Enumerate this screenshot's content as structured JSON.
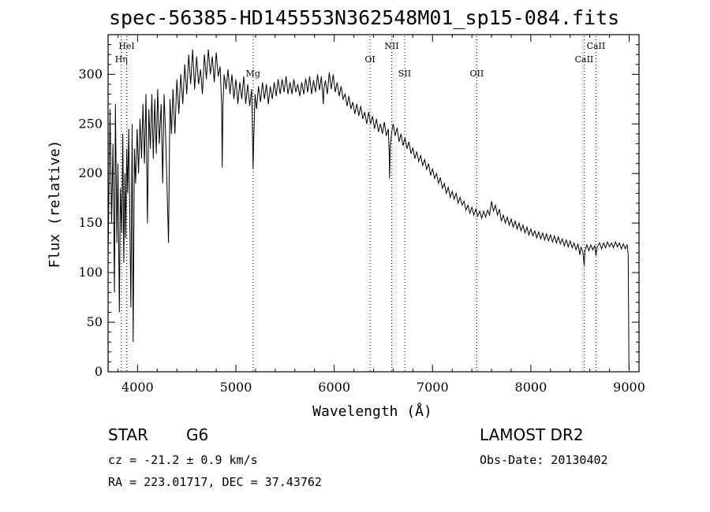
{
  "title": "spec-56385-HD145553N362548M01_sp15-084.fits",
  "footer": {
    "class_label": "STAR",
    "subclass": "G6",
    "survey": "LAMOST DR2",
    "cz": "cz = -21.2 ± 0.9 km/s",
    "obs_date": "Obs-Date: 20130402",
    "radec": "RA = 223.01717, DEC =  37.43762"
  },
  "chart_data": {
    "type": "line",
    "title": "spec-56385-HD145553N362548M01_sp15-084.fits",
    "xlabel": "Wavelength (Å)",
    "ylabel": "Flux (relative)",
    "xlim": [
      3700,
      9100
    ],
    "ylim": [
      0,
      340
    ],
    "xticks": [
      4000,
      5000,
      6000,
      7000,
      8000,
      9000
    ],
    "yticks": [
      0,
      50,
      100,
      150,
      200,
      250,
      300
    ],
    "grid": false,
    "line_color": "#000000",
    "marker_color": "#000000",
    "markers": [
      {
        "label": "Hη",
        "x": 3835,
        "row": 2
      },
      {
        "label": "HeI",
        "x": 3889,
        "row": 1
      },
      {
        "label": "Mg",
        "x": 5175,
        "row": 3
      },
      {
        "label": "OI",
        "x": 6364,
        "row": 2
      },
      {
        "label": "NII",
        "x": 6584,
        "row": 1
      },
      {
        "label": "SII",
        "x": 6717,
        "row": 3
      },
      {
        "label": "OII",
        "x": 7450,
        "row": 3
      },
      {
        "label": "CaII",
        "x": 8542,
        "row": 2
      },
      {
        "label": "CaII",
        "x": 8662,
        "row": 1
      }
    ],
    "spectrum": [
      [
        3700,
        115
      ],
      [
        3720,
        265
      ],
      [
        3735,
        150
      ],
      [
        3750,
        230
      ],
      [
        3765,
        80
      ],
      [
        3775,
        270
      ],
      [
        3790,
        130
      ],
      [
        3800,
        210
      ],
      [
        3815,
        60
      ],
      [
        3825,
        185
      ],
      [
        3840,
        140
      ],
      [
        3850,
        240
      ],
      [
        3860,
        110
      ],
      [
        3872,
        200
      ],
      [
        3880,
        135
      ],
      [
        3890,
        225
      ],
      [
        3900,
        180
      ],
      [
        3910,
        245
      ],
      [
        3920,
        165
      ],
      [
        3932,
        65
      ],
      [
        3945,
        250
      ],
      [
        3955,
        30
      ],
      [
        3968,
        225
      ],
      [
        3980,
        190
      ],
      [
        3995,
        245
      ],
      [
        4010,
        200
      ],
      [
        4025,
        255
      ],
      [
        4040,
        215
      ],
      [
        4055,
        270
      ],
      [
        4070,
        210
      ],
      [
        4085,
        280
      ],
      [
        4100,
        150
      ],
      [
        4115,
        265
      ],
      [
        4130,
        225
      ],
      [
        4145,
        280
      ],
      [
        4160,
        215
      ],
      [
        4175,
        275
      ],
      [
        4190,
        220
      ],
      [
        4205,
        285
      ],
      [
        4220,
        230
      ],
      [
        4240,
        270
      ],
      [
        4255,
        190
      ],
      [
        4270,
        280
      ],
      [
        4285,
        240
      ],
      [
        4300,
        185
      ],
      [
        4315,
        130
      ],
      [
        4330,
        275
      ],
      [
        4345,
        240
      ],
      [
        4360,
        285
      ],
      [
        4380,
        240
      ],
      [
        4400,
        295
      ],
      [
        4420,
        260
      ],
      [
        4440,
        300
      ],
      [
        4460,
        270
      ],
      [
        4480,
        310
      ],
      [
        4500,
        280
      ],
      [
        4520,
        320
      ],
      [
        4540,
        290
      ],
      [
        4560,
        325
      ],
      [
        4580,
        285
      ],
      [
        4600,
        318
      ],
      [
        4620,
        290
      ],
      [
        4640,
        305
      ],
      [
        4660,
        280
      ],
      [
        4680,
        320
      ],
      [
        4700,
        295
      ],
      [
        4720,
        325
      ],
      [
        4740,
        300
      ],
      [
        4760,
        318
      ],
      [
        4780,
        292
      ],
      [
        4800,
        322
      ],
      [
        4820,
        298
      ],
      [
        4840,
        308
      ],
      [
        4855,
        270
      ],
      [
        4861,
        206
      ],
      [
        4868,
        268
      ],
      [
        4880,
        300
      ],
      [
        4900,
        285
      ],
      [
        4920,
        305
      ],
      [
        4940,
        280
      ],
      [
        4960,
        300
      ],
      [
        4980,
        275
      ],
      [
        5000,
        295
      ],
      [
        5020,
        270
      ],
      [
        5040,
        292
      ],
      [
        5060,
        275
      ],
      [
        5080,
        298
      ],
      [
        5100,
        270
      ],
      [
        5120,
        290
      ],
      [
        5140,
        268
      ],
      [
        5160,
        285
      ],
      [
        5168,
        245
      ],
      [
        5175,
        205
      ],
      [
        5183,
        240
      ],
      [
        5195,
        280
      ],
      [
        5210,
        265
      ],
      [
        5230,
        288
      ],
      [
        5250,
        272
      ],
      [
        5270,
        292
      ],
      [
        5290,
        275
      ],
      [
        5310,
        290
      ],
      [
        5330,
        270
      ],
      [
        5350,
        288
      ],
      [
        5370,
        275
      ],
      [
        5390,
        292
      ],
      [
        5410,
        278
      ],
      [
        5430,
        295
      ],
      [
        5450,
        280
      ],
      [
        5470,
        295
      ],
      [
        5490,
        282
      ],
      [
        5510,
        298
      ],
      [
        5530,
        280
      ],
      [
        5550,
        292
      ],
      [
        5570,
        280
      ],
      [
        5590,
        295
      ],
      [
        5610,
        282
      ],
      [
        5630,
        290
      ],
      [
        5650,
        278
      ],
      [
        5670,
        292
      ],
      [
        5690,
        280
      ],
      [
        5710,
        296
      ],
      [
        5730,
        282
      ],
      [
        5750,
        298
      ],
      [
        5770,
        280
      ],
      [
        5790,
        294
      ],
      [
        5810,
        282
      ],
      [
        5830,
        300
      ],
      [
        5850,
        284
      ],
      [
        5870,
        298
      ],
      [
        5890,
        270
      ],
      [
        5895,
        285
      ],
      [
        5910,
        294
      ],
      [
        5930,
        280
      ],
      [
        5950,
        302
      ],
      [
        5970,
        285
      ],
      [
        5990,
        300
      ],
      [
        6010,
        282
      ],
      [
        6030,
        292
      ],
      [
        6050,
        278
      ],
      [
        6070,
        288
      ],
      [
        6090,
        275
      ],
      [
        6110,
        280
      ],
      [
        6130,
        268
      ],
      [
        6150,
        278
      ],
      [
        6170,
        265
      ],
      [
        6190,
        272
      ],
      [
        6210,
        260
      ],
      [
        6230,
        270
      ],
      [
        6250,
        258
      ],
      [
        6270,
        268
      ],
      [
        6290,
        255
      ],
      [
        6310,
        262
      ],
      [
        6330,
        250
      ],
      [
        6350,
        262
      ],
      [
        6370,
        250
      ],
      [
        6390,
        258
      ],
      [
        6410,
        245
      ],
      [
        6430,
        255
      ],
      [
        6450,
        242
      ],
      [
        6470,
        250
      ],
      [
        6490,
        240
      ],
      [
        6510,
        252
      ],
      [
        6530,
        238
      ],
      [
        6550,
        245
      ],
      [
        6560,
        220
      ],
      [
        6563,
        195
      ],
      [
        6570,
        228
      ],
      [
        6585,
        242
      ],
      [
        6600,
        250
      ],
      [
        6620,
        238
      ],
      [
        6640,
        246
      ],
      [
        6660,
        232
      ],
      [
        6680,
        240
      ],
      [
        6700,
        228
      ],
      [
        6720,
        236
      ],
      [
        6740,
        225
      ],
      [
        6760,
        232
      ],
      [
        6780,
        220
      ],
      [
        6800,
        226
      ],
      [
        6820,
        215
      ],
      [
        6840,
        222
      ],
      [
        6860,
        212
      ],
      [
        6880,
        218
      ],
      [
        6900,
        208
      ],
      [
        6920,
        214
      ],
      [
        6940,
        204
      ],
      [
        6960,
        210
      ],
      [
        6980,
        198
      ],
      [
        7000,
        205
      ],
      [
        7020,
        195
      ],
      [
        7040,
        200
      ],
      [
        7060,
        190
      ],
      [
        7080,
        196
      ],
      [
        7100,
        185
      ],
      [
        7120,
        190
      ],
      [
        7140,
        180
      ],
      [
        7160,
        186
      ],
      [
        7180,
        176
      ],
      [
        7200,
        182
      ],
      [
        7220,
        174
      ],
      [
        7240,
        180
      ],
      [
        7260,
        170
      ],
      [
        7280,
        176
      ],
      [
        7300,
        168
      ],
      [
        7320,
        172
      ],
      [
        7340,
        163
      ],
      [
        7360,
        168
      ],
      [
        7380,
        160
      ],
      [
        7400,
        166
      ],
      [
        7420,
        158
      ],
      [
        7440,
        164
      ],
      [
        7460,
        157
      ],
      [
        7480,
        162
      ],
      [
        7500,
        155
      ],
      [
        7520,
        162
      ],
      [
        7540,
        156
      ],
      [
        7560,
        163
      ],
      [
        7580,
        158
      ],
      [
        7600,
        172
      ],
      [
        7620,
        162
      ],
      [
        7640,
        168
      ],
      [
        7660,
        158
      ],
      [
        7680,
        164
      ],
      [
        7700,
        152
      ],
      [
        7720,
        158
      ],
      [
        7740,
        150
      ],
      [
        7760,
        156
      ],
      [
        7780,
        148
      ],
      [
        7800,
        154
      ],
      [
        7820,
        146
      ],
      [
        7840,
        152
      ],
      [
        7860,
        144
      ],
      [
        7880,
        150
      ],
      [
        7900,
        142
      ],
      [
        7920,
        148
      ],
      [
        7940,
        140
      ],
      [
        7960,
        146
      ],
      [
        7980,
        138
      ],
      [
        8000,
        144
      ],
      [
        8020,
        137
      ],
      [
        8040,
        142
      ],
      [
        8060,
        135
      ],
      [
        8080,
        141
      ],
      [
        8100,
        134
      ],
      [
        8120,
        140
      ],
      [
        8140,
        133
      ],
      [
        8160,
        139
      ],
      [
        8180,
        132
      ],
      [
        8200,
        138
      ],
      [
        8220,
        131
      ],
      [
        8240,
        137
      ],
      [
        8260,
        130
      ],
      [
        8280,
        136
      ],
      [
        8300,
        129
      ],
      [
        8320,
        134
      ],
      [
        8340,
        127
      ],
      [
        8360,
        133
      ],
      [
        8380,
        126
      ],
      [
        8400,
        132
      ],
      [
        8420,
        125
      ],
      [
        8440,
        130
      ],
      [
        8460,
        123
      ],
      [
        8480,
        129
      ],
      [
        8498,
        118
      ],
      [
        8510,
        126
      ],
      [
        8530,
        120
      ],
      [
        8542,
        107
      ],
      [
        8550,
        122
      ],
      [
        8570,
        128
      ],
      [
        8590,
        122
      ],
      [
        8610,
        128
      ],
      [
        8630,
        123
      ],
      [
        8650,
        127
      ],
      [
        8662,
        117
      ],
      [
        8675,
        126
      ],
      [
        8700,
        130
      ],
      [
        8720,
        124
      ],
      [
        8740,
        130
      ],
      [
        8760,
        125
      ],
      [
        8780,
        131
      ],
      [
        8800,
        126
      ],
      [
        8820,
        130
      ],
      [
        8840,
        125
      ],
      [
        8860,
        131
      ],
      [
        8880,
        126
      ],
      [
        8900,
        130
      ],
      [
        8920,
        124
      ],
      [
        8940,
        129
      ],
      [
        8960,
        124
      ],
      [
        8980,
        128
      ],
      [
        8990,
        118
      ],
      [
        8998,
        3
      ]
    ]
  }
}
